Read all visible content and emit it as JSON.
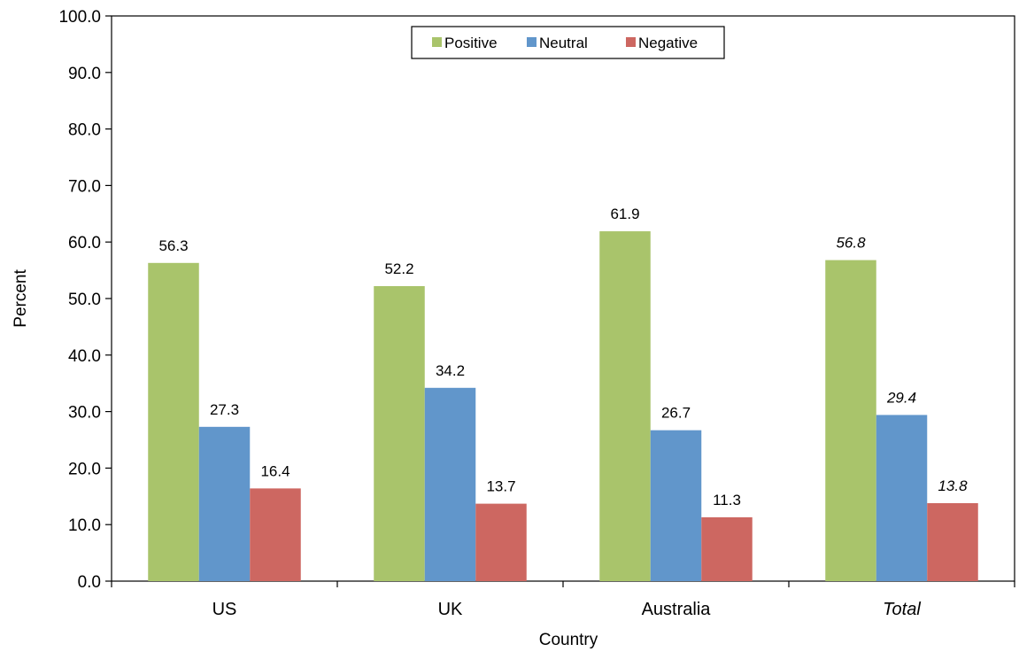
{
  "chart_data": {
    "type": "bar",
    "categories": [
      "US",
      "UK",
      "Australia",
      "Total"
    ],
    "italic_categories": [
      "Total"
    ],
    "series": [
      {
        "name": "Positive",
        "color": "#a9c46b",
        "values": [
          56.3,
          52.2,
          61.9,
          56.8
        ]
      },
      {
        "name": "Neutral",
        "color": "#6196cb",
        "values": [
          27.3,
          34.2,
          26.7,
          29.4
        ]
      },
      {
        "name": "Negative",
        "color": "#cd6761",
        "values": [
          16.4,
          13.7,
          11.3,
          13.8
        ]
      }
    ],
    "xlabel": "Country",
    "ylabel": "Percent",
    "ylim": [
      0,
      100
    ],
    "ytick_step": 10,
    "ytick_labels": [
      "0.0",
      "10.0",
      "20.0",
      "30.0",
      "40.0",
      "50.0",
      "60.0",
      "70.0",
      "80.0",
      "90.0",
      "100.0"
    ],
    "grid": false,
    "legend_position": "top-center"
  }
}
